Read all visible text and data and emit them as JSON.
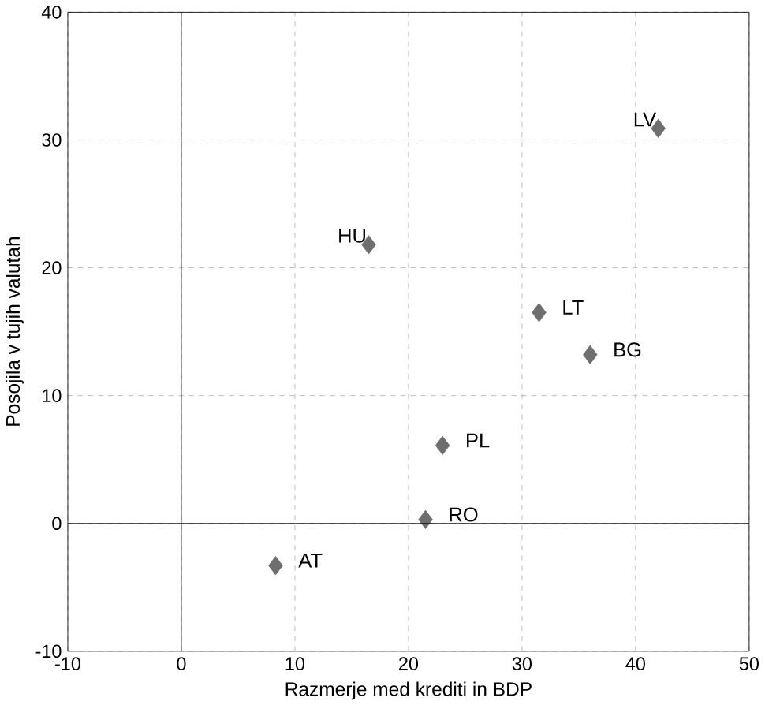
{
  "chart_data": {
    "type": "scatter",
    "xlabel": "Razmerje med krediti in BDP",
    "ylabel": "Posojila v tujih valutah",
    "x": [
      42.0,
      16.5,
      31.5,
      36.0,
      23.0,
      21.5,
      8.3
    ],
    "series": [
      {
        "color": "#6e6e6e",
        "values": [
          30.9,
          21.8,
          16.5,
          13.2,
          6.1,
          0.3,
          -3.3
        ]
      }
    ],
    "annotations": [
      {
        "text": "LV",
        "x": 42.0,
        "y": 30.9
      },
      {
        "text": "HU",
        "x": 16.5,
        "y": 21.8
      },
      {
        "text": "LT",
        "x": 31.5,
        "y": 16.5
      },
      {
        "text": "BG",
        "x": 36.0,
        "y": 13.2
      },
      {
        "text": "PL",
        "x": 23.0,
        "y": 6.1
      },
      {
        "text": "RO",
        "x": 21.5,
        "y": 0.3
      },
      {
        "text": "AT",
        "x": 8.3,
        "y": -3.3
      }
    ],
    "xlim": [
      -10,
      50
    ],
    "ylim": [
      -10,
      40
    ],
    "xticks": [
      -10,
      0,
      10,
      20,
      30,
      40,
      50
    ],
    "yticks": [
      -10,
      0,
      10,
      20,
      30,
      40
    ],
    "grid": true,
    "marker": "diamond"
  }
}
